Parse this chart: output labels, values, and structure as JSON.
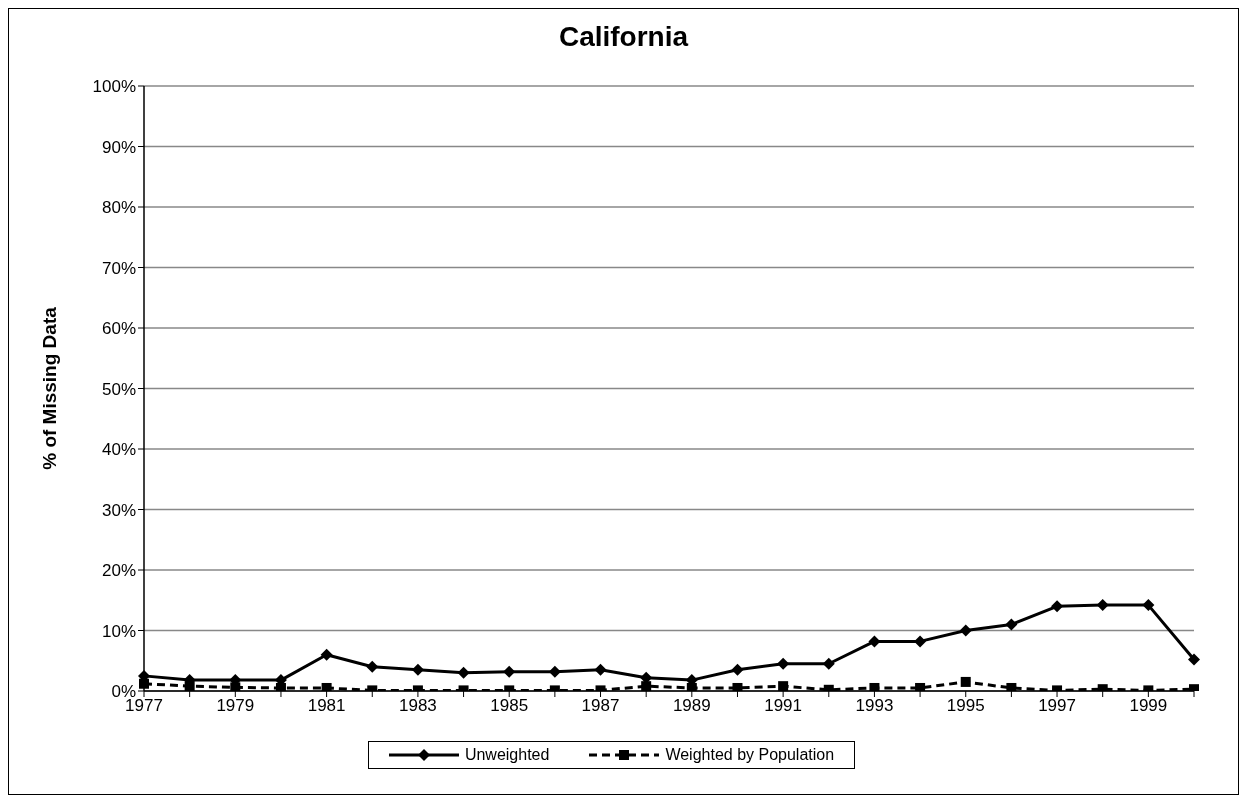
{
  "chart_data": {
    "type": "line",
    "title": "California",
    "ylabel": "% of Missing Data",
    "categories": [
      "1977",
      null,
      "1979",
      null,
      "1981",
      null,
      "1983",
      null,
      "1985",
      null,
      "1987",
      null,
      "1989",
      null,
      "1991",
      null,
      "1993",
      null,
      "1995",
      null,
      "1997",
      null,
      "1999",
      null
    ],
    "series": [
      {
        "name": "Unweighted",
        "color": "#000000",
        "marker": "diamond",
        "line_style": "solid",
        "values": [
          2.5,
          1.8,
          1.8,
          1.8,
          6,
          4,
          3.5,
          3,
          3.2,
          3.2,
          3.5,
          2.2,
          1.8,
          3.5,
          4.5,
          4.5,
          8.2,
          8.2,
          10,
          11,
          14,
          14.2,
          14.2,
          5.2
        ]
      },
      {
        "name": "Weighted by Population",
        "color": "#000000",
        "marker": "square",
        "line_style": "dashed",
        "values": [
          1.2,
          0.8,
          0.6,
          0.5,
          0.5,
          0.1,
          0.1,
          0.1,
          0.1,
          0.1,
          0.1,
          0.8,
          0.5,
          0.5,
          0.8,
          0.2,
          0.5,
          0.5,
          1.5,
          0.5,
          0.1,
          0.3,
          0.1,
          0.3
        ]
      }
    ],
    "ylim": [
      0,
      100
    ],
    "yticks": [
      {
        "value": 0,
        "label": "0%"
      },
      {
        "value": 10,
        "label": "10%"
      },
      {
        "value": 20,
        "label": "20%"
      },
      {
        "value": 30,
        "label": "30%"
      },
      {
        "value": 40,
        "label": "40%"
      },
      {
        "value": 50,
        "label": "50%"
      },
      {
        "value": 60,
        "label": "60%"
      },
      {
        "value": 70,
        "label": "70%"
      },
      {
        "value": 80,
        "label": "80%"
      },
      {
        "value": 90,
        "label": "90%"
      },
      {
        "value": 100,
        "label": "100%"
      }
    ],
    "grid": "y",
    "legend": "bottom"
  }
}
